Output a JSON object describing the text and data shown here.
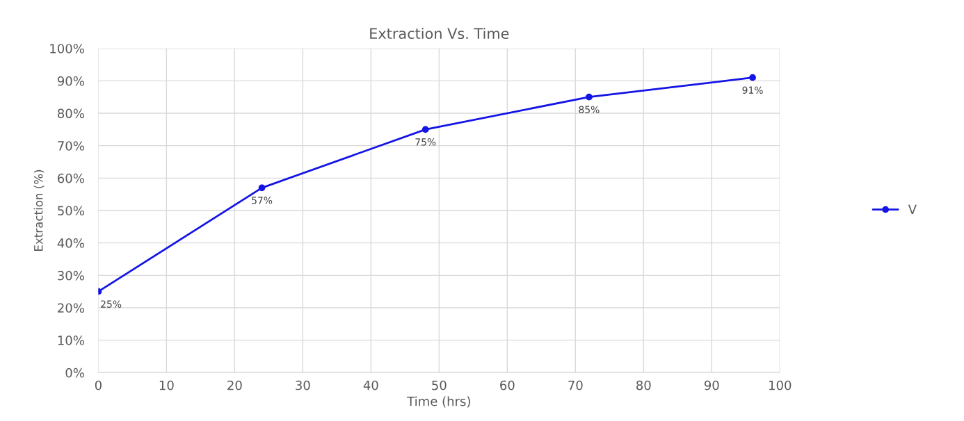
{
  "chart_data": {
    "type": "line",
    "title": "Extraction Vs. Time",
    "xlabel": "Time (hrs)",
    "ylabel": "Extraction (%)",
    "x": [
      0,
      24,
      48,
      72,
      96
    ],
    "series": [
      {
        "name": "V",
        "color": "#1414e6",
        "values": [
          25,
          57,
          75,
          85,
          91
        ],
        "value_labels": [
          "25%",
          "57%",
          "75%",
          "85%",
          "91%"
        ]
      }
    ],
    "xlim": [
      0,
      100
    ],
    "xticks": [
      0,
      10,
      20,
      30,
      40,
      50,
      60,
      70,
      80,
      90,
      100
    ],
    "ylim": [
      0,
      100
    ],
    "yticks": [
      {
        "value": 0,
        "label": "0%"
      },
      {
        "value": 10,
        "label": "10%"
      },
      {
        "value": 20,
        "label": "20%"
      },
      {
        "value": 30,
        "label": "30%"
      },
      {
        "value": 40,
        "label": "40%"
      },
      {
        "value": 50,
        "label": "50%"
      },
      {
        "value": 60,
        "label": "60%"
      },
      {
        "value": 70,
        "label": "70%"
      },
      {
        "value": 80,
        "label": "80%"
      },
      {
        "value": 90,
        "label": "90%"
      },
      {
        "value": 100,
        "label": "100%"
      }
    ],
    "grid": true,
    "legend": "right",
    "marker": "circle",
    "line_style": "solid"
  }
}
